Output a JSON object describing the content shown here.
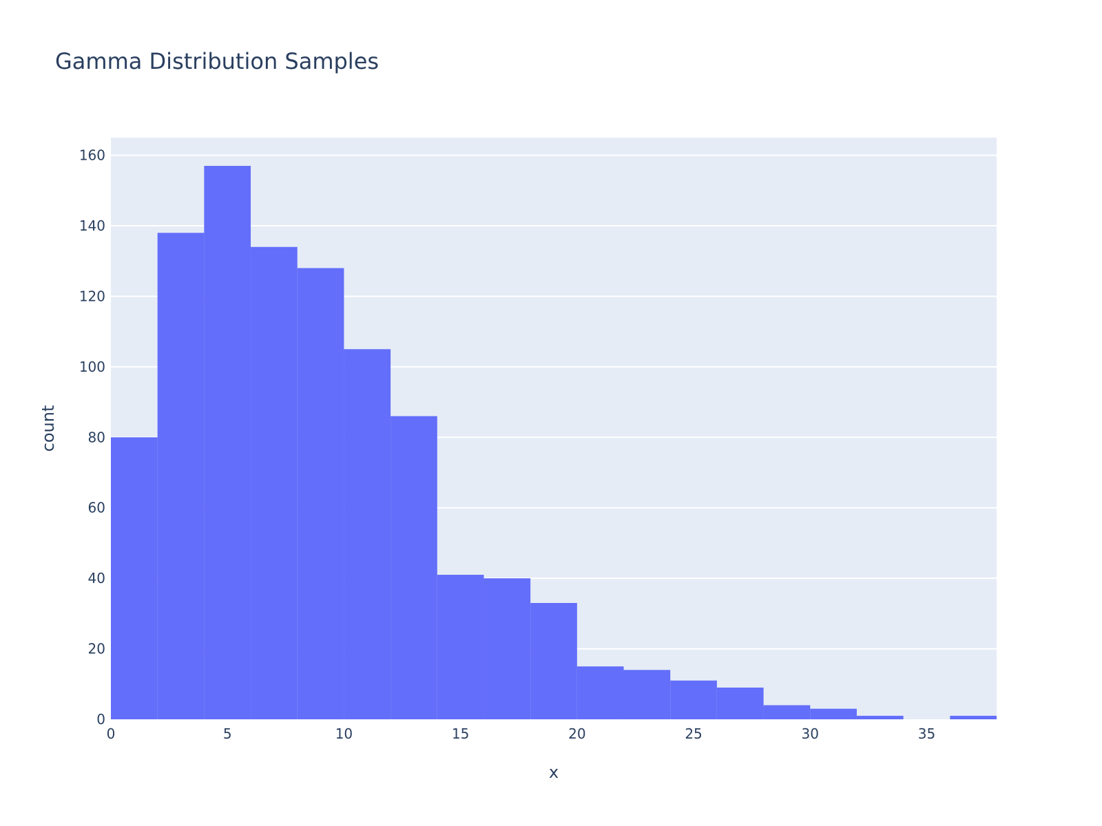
{
  "chart_data": {
    "type": "bar",
    "title": "Gamma Distribution Samples",
    "xlabel": "x",
    "ylabel": "count",
    "bin_edges": [
      0,
      2,
      4,
      6,
      8,
      10,
      12,
      14,
      16,
      18,
      20,
      22,
      24,
      26,
      28,
      30,
      32,
      34,
      36,
      38
    ],
    "values": [
      80,
      138,
      157,
      134,
      128,
      105,
      86,
      41,
      40,
      33,
      15,
      14,
      11,
      9,
      4,
      3,
      1,
      0,
      1
    ],
    "xlim": [
      0,
      38
    ],
    "ylim": [
      0,
      165
    ],
    "xticks": [
      0,
      5,
      10,
      15,
      20,
      25,
      30,
      35
    ],
    "yticks": [
      0,
      20,
      40,
      60,
      80,
      100,
      120,
      140,
      160
    ],
    "grid": true,
    "colors": {
      "bar": "#636efa",
      "plot_background": "#e5ecf6",
      "grid": "#ffffff",
      "text": "#2a3f5f"
    }
  }
}
